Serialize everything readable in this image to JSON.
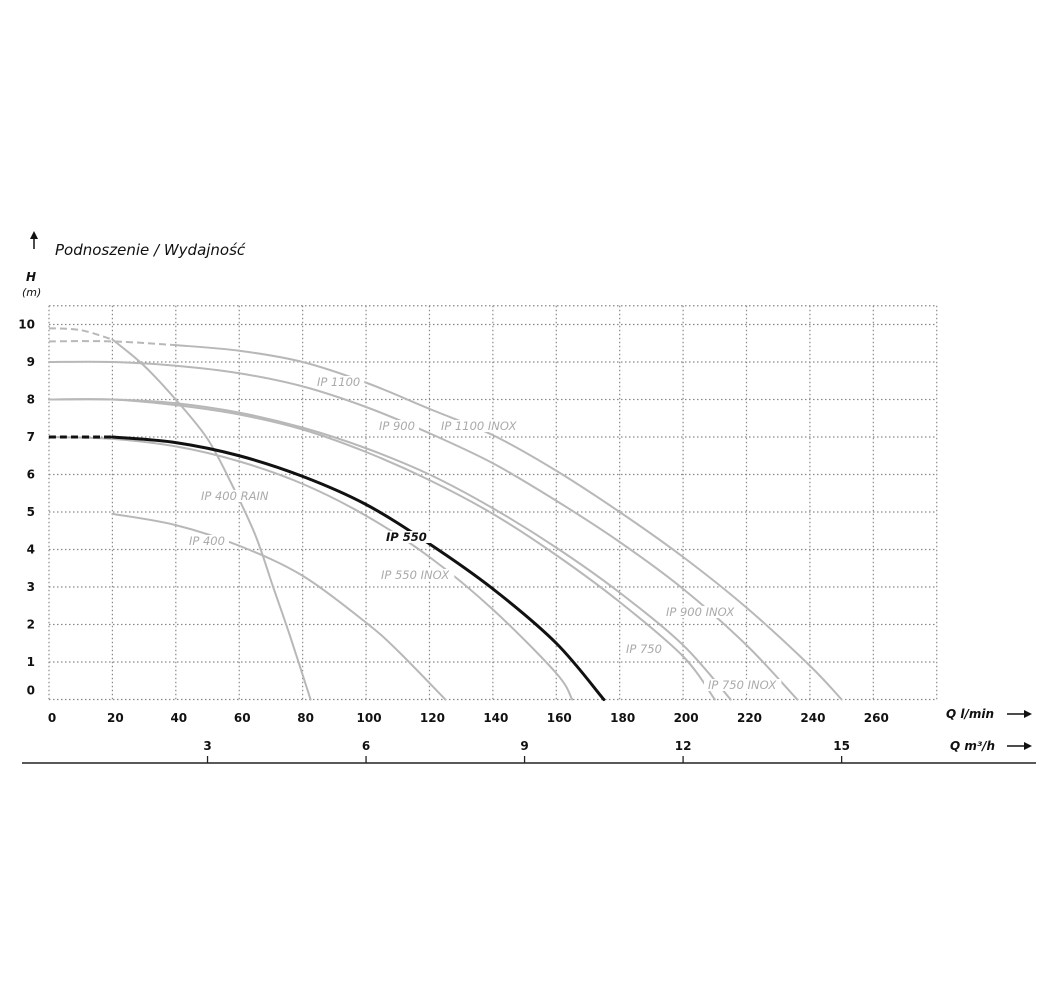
{
  "chart_data": {
    "type": "line",
    "title": "Podnoszenie / Wydajność",
    "ylabel": "H",
    "yunit": "(m)",
    "xlabel": "Q l/min",
    "x2label": "Q m³/h",
    "xlim": [
      0,
      280
    ],
    "ylim": [
      0,
      10.5
    ],
    "xticks": [
      0,
      20,
      40,
      60,
      80,
      100,
      120,
      140,
      160,
      180,
      200,
      220,
      240,
      260
    ],
    "yticks": [
      0,
      1,
      2,
      3,
      4,
      5,
      6,
      7,
      8,
      9,
      10
    ],
    "x2ticks": [
      3,
      6,
      9,
      12,
      15
    ],
    "grid": true,
    "colors": {
      "highlight": "#111111",
      "others": "#b8b8b8",
      "grid": "#8a8a8a"
    },
    "series": [
      {
        "name": "IP 1100",
        "also_label": "IP 1100 INOX",
        "highlight": false,
        "dashed_until": 40,
        "points": [
          [
            0,
            9.55
          ],
          [
            20,
            9.55
          ],
          [
            40,
            9.45
          ],
          [
            60,
            9.3
          ],
          [
            80,
            9.0
          ],
          [
            100,
            8.45
          ],
          [
            120,
            7.75
          ],
          [
            140,
            7.05
          ],
          [
            160,
            6.1
          ],
          [
            180,
            5.0
          ],
          [
            200,
            3.8
          ],
          [
            220,
            2.45
          ],
          [
            240,
            0.9
          ],
          [
            250,
            0
          ]
        ]
      },
      {
        "name": "IP 900",
        "also_label": "IP 900 INOX",
        "highlight": false,
        "dashed_until": 0,
        "points": [
          [
            0,
            9.0
          ],
          [
            20,
            9.0
          ],
          [
            40,
            8.9
          ],
          [
            60,
            8.7
          ],
          [
            80,
            8.35
          ],
          [
            100,
            7.8
          ],
          [
            120,
            7.1
          ],
          [
            140,
            6.3
          ],
          [
            160,
            5.3
          ],
          [
            180,
            4.2
          ],
          [
            200,
            2.95
          ],
          [
            220,
            1.45
          ],
          [
            236,
            0
          ]
        ]
      },
      {
        "name": "IP 750 INOX",
        "highlight": false,
        "dashed_until": 0,
        "points": [
          [
            0,
            8.0
          ],
          [
            20,
            8.0
          ],
          [
            40,
            7.9
          ],
          [
            60,
            7.65
          ],
          [
            80,
            7.25
          ],
          [
            100,
            6.7
          ],
          [
            120,
            6.0
          ],
          [
            140,
            5.1
          ],
          [
            160,
            4.05
          ],
          [
            180,
            2.85
          ],
          [
            200,
            1.45
          ],
          [
            215,
            0
          ]
        ]
      },
      {
        "name": "IP 750",
        "highlight": false,
        "dashed_until": 0,
        "points": [
          [
            0,
            8.0
          ],
          [
            20,
            8.0
          ],
          [
            40,
            7.85
          ],
          [
            60,
            7.6
          ],
          [
            80,
            7.2
          ],
          [
            100,
            6.6
          ],
          [
            120,
            5.85
          ],
          [
            140,
            4.95
          ],
          [
            160,
            3.85
          ],
          [
            180,
            2.6
          ],
          [
            200,
            1.15
          ],
          [
            210,
            0
          ]
        ]
      },
      {
        "name": "IP 550 INOX",
        "highlight": false,
        "dashed_until": 0,
        "points": [
          [
            0,
            7.0
          ],
          [
            20,
            6.95
          ],
          [
            40,
            6.75
          ],
          [
            60,
            6.35
          ],
          [
            80,
            5.75
          ],
          [
            100,
            4.9
          ],
          [
            120,
            3.8
          ],
          [
            140,
            2.4
          ],
          [
            160,
            0.7
          ],
          [
            165,
            0
          ]
        ]
      },
      {
        "name": "IP 400 RAIN",
        "highlight": false,
        "dashed_until": 20,
        "points": [
          [
            0,
            9.9
          ],
          [
            10,
            9.85
          ],
          [
            20,
            9.6
          ],
          [
            30,
            8.9
          ],
          [
            41,
            7.9
          ],
          [
            50,
            6.95
          ],
          [
            57,
            5.85
          ],
          [
            65,
            4.4
          ],
          [
            70.7,
            3.0
          ],
          [
            76,
            1.7
          ],
          [
            82.5,
            0
          ]
        ]
      },
      {
        "name": "IP 400",
        "highlight": false,
        "dashed_until": 15,
        "points": [
          [
            0,
            5.0
          ],
          [
            20,
            4.95
          ],
          [
            40,
            4.65
          ],
          [
            60,
            4.1
          ],
          [
            80,
            3.3
          ],
          [
            100,
            2.05
          ],
          [
            110,
            1.3
          ],
          [
            125,
            0
          ]
        ]
      },
      {
        "name": "IP 550",
        "highlight": true,
        "dashed_until": 20,
        "points": [
          [
            0,
            7.0
          ],
          [
            20,
            7.0
          ],
          [
            40,
            6.85
          ],
          [
            60,
            6.5
          ],
          [
            80,
            5.95
          ],
          [
            100,
            5.2
          ],
          [
            120,
            4.15
          ],
          [
            140,
            2.95
          ],
          [
            160,
            1.5
          ],
          [
            175,
            0
          ]
        ]
      }
    ]
  }
}
